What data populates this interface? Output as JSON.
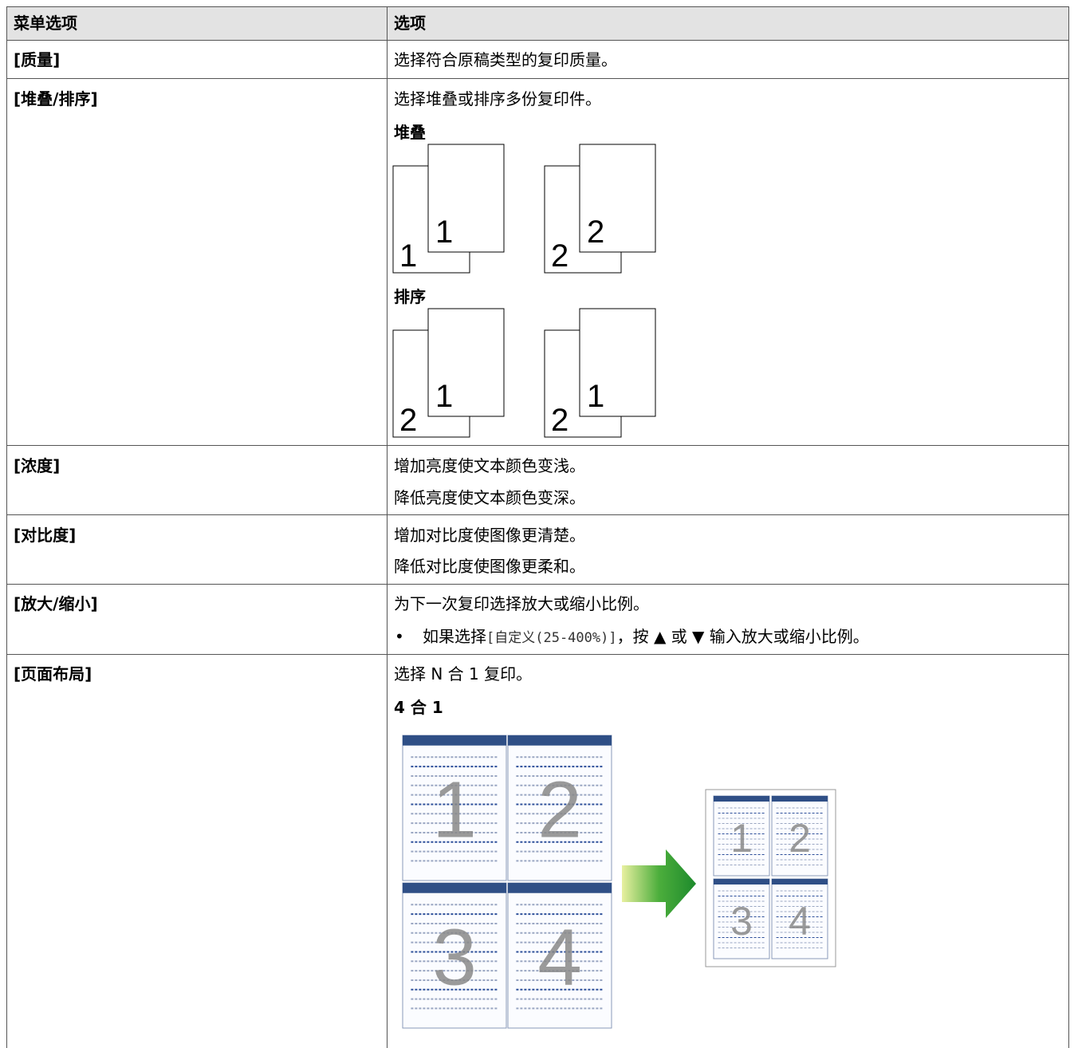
{
  "table": {
    "header": [
      "菜单选项",
      "选项"
    ],
    "rows": [
      {
        "menu": "[质量]",
        "lines": [
          "选择符合原稿类型的复印质量。"
        ]
      },
      {
        "menu": "[堆叠/排序]",
        "lines": [
          "选择堆叠或排序多份复印件。"
        ],
        "figures": [
          {
            "label": "堆叠",
            "pairs": [
              {
                "back": "1",
                "front": "1"
              },
              {
                "back": "2",
                "front": "2"
              }
            ]
          },
          {
            "label": "排序",
            "pairs": [
              {
                "back": "2",
                "front": "1"
              },
              {
                "back": "2",
                "front": "1"
              }
            ]
          }
        ]
      },
      {
        "menu": "[浓度]",
        "lines": [
          "增加亮度使文本颜色变浅。",
          "降低亮度使文本颜色变深。"
        ]
      },
      {
        "menu": "[对比度]",
        "lines": [
          "增加对比度使图像更清楚。",
          "降低对比度使图像更柔和。"
        ]
      },
      {
        "menu": "[放大/缩小]",
        "lines": [
          "为下一次复印选择放大或缩小比例。"
        ],
        "bullet": {
          "before": "如果选择",
          "code": "[自定义(25-400%)]",
          "after": "，按 ▲ 或 ▼ 输入放大或缩小比例。"
        }
      },
      {
        "menu": "[页面布局]",
        "lines": [
          "选择 N 合 1 复印。"
        ],
        "figure_label": "4 合 1",
        "source_pages": [
          "1",
          "2",
          "3",
          "4"
        ],
        "result_pages": [
          "1",
          "2",
          "3",
          "4"
        ]
      }
    ]
  }
}
